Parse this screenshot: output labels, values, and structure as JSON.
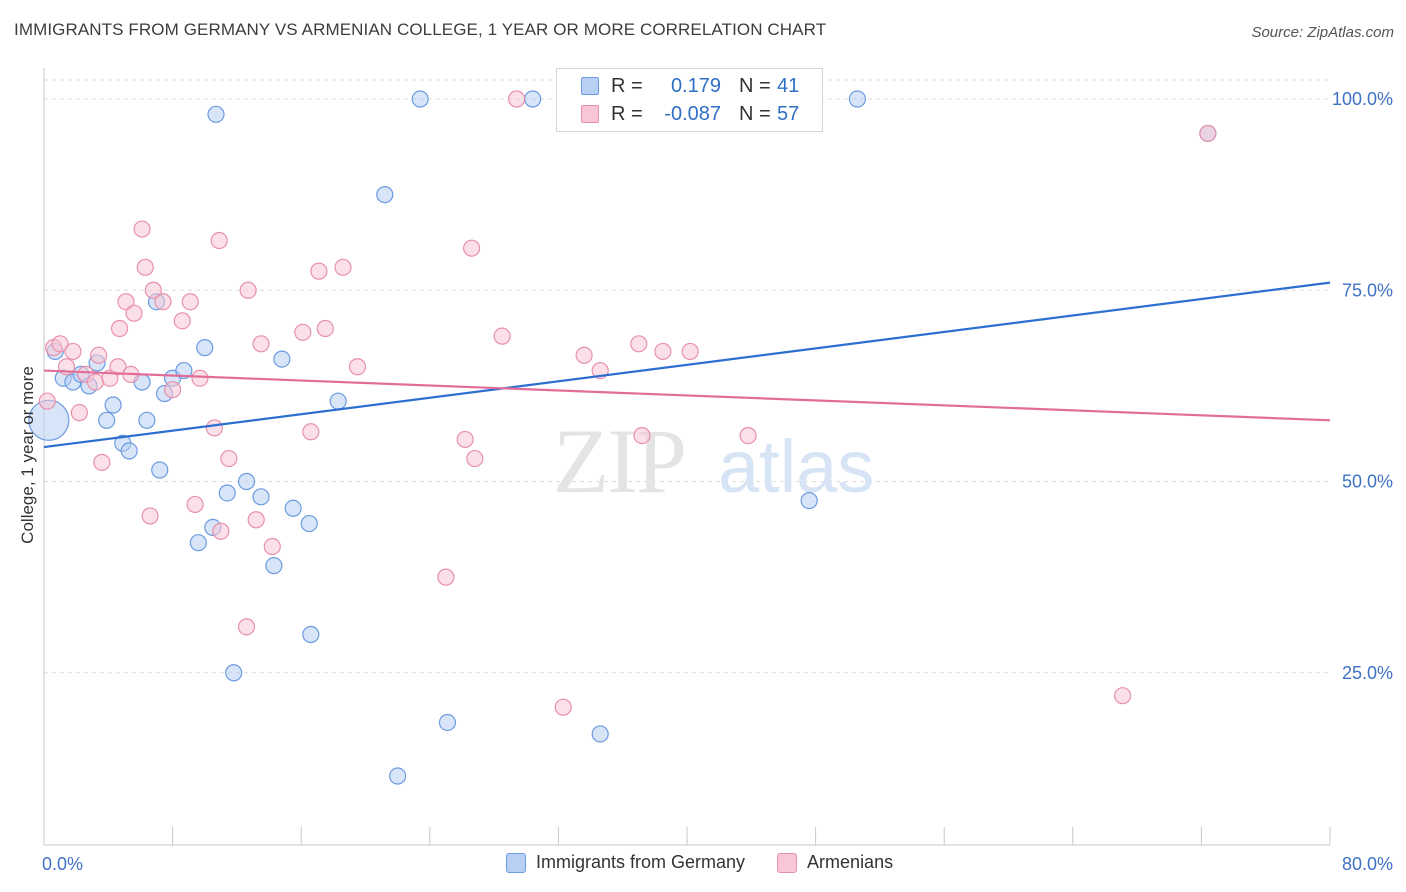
{
  "title": "IMMIGRANTS FROM GERMANY VS ARMENIAN COLLEGE, 1 YEAR OR MORE CORRELATION CHART",
  "source": "Source: ZipAtlas.com",
  "watermark": {
    "zip": "ZIP",
    "atlas": "atlas"
  },
  "legend": {
    "r_label": "R =",
    "n_label": "N =",
    "rows": [
      {
        "r": "0.179",
        "n": "41",
        "fill": "#b8d0f4",
        "stroke": "#6b9be0"
      },
      {
        "r": "-0.087",
        "n": "57",
        "fill": "#f8c7d6",
        "stroke": "#e890ac"
      }
    ]
  },
  "chart_data": {
    "type": "scatter",
    "title": "IMMIGRANTS FROM GERMANY VS ARMENIAN COLLEGE, 1 YEAR OR MORE CORRELATION CHART",
    "xlabel": "",
    "ylabel": "College, 1 year or more",
    "xlim": [
      0,
      80
    ],
    "ylim": [
      0,
      105
    ],
    "x_tick_labels": [
      "0.0%",
      "80.0%"
    ],
    "y_ticks": [
      25,
      50,
      75,
      100
    ],
    "y_tick_labels": [
      "25.0%",
      "50.0%",
      "75.0%",
      "100.0%"
    ],
    "grid": true,
    "legend_position": "top-center",
    "series": [
      {
        "name": "Immigrants from Germany",
        "color": "#6b9be0",
        "fill": "#b8d0f4",
        "trend": {
          "x": [
            0,
            80
          ],
          "y": [
            54.5,
            76
          ]
        },
        "trend_color": "#2d6fd0",
        "points": [
          [
            0.3,
            58
          ],
          [
            0.7,
            67
          ],
          [
            1.2,
            63.5
          ],
          [
            1.8,
            63
          ],
          [
            2.3,
            64
          ],
          [
            2.8,
            62.5
          ],
          [
            3.3,
            65.5
          ],
          [
            3.9,
            58
          ],
          [
            4.3,
            60
          ],
          [
            4.9,
            55
          ],
          [
            5.3,
            54
          ],
          [
            6.1,
            63
          ],
          [
            6.4,
            58
          ],
          [
            7.2,
            51.5
          ],
          [
            7.0,
            73.5
          ],
          [
            7.5,
            61.5
          ],
          [
            8.0,
            63.5
          ],
          [
            8.7,
            64.5
          ],
          [
            9.6,
            42
          ],
          [
            10.0,
            67.5
          ],
          [
            10.5,
            44
          ],
          [
            10.7,
            98
          ],
          [
            11.4,
            48.5
          ],
          [
            11.8,
            25
          ],
          [
            12.6,
            50
          ],
          [
            13.5,
            48
          ],
          [
            14.3,
            39
          ],
          [
            14.8,
            66
          ],
          [
            15.5,
            46.5
          ],
          [
            16.5,
            44.5
          ],
          [
            16.6,
            30
          ],
          [
            18.3,
            60.5
          ],
          [
            21.2,
            87.5
          ],
          [
            22.0,
            11.5
          ],
          [
            23.4,
            100
          ],
          [
            25.1,
            18.5
          ],
          [
            30.4,
            100
          ],
          [
            34.6,
            17
          ],
          [
            47.6,
            47.5
          ],
          [
            50.6,
            100
          ],
          [
            72.4,
            95.5
          ]
        ]
      },
      {
        "name": "Armenians",
        "color": "#e890ac",
        "fill": "#f8c7d6",
        "trend": {
          "x": [
            0,
            80
          ],
          "y": [
            64.5,
            58
          ]
        },
        "trend_color": "#e26d98",
        "points": [
          [
            0.2,
            60.5
          ],
          [
            0.6,
            67.5
          ],
          [
            1.0,
            68
          ],
          [
            1.4,
            65
          ],
          [
            1.8,
            67
          ],
          [
            2.2,
            59
          ],
          [
            2.6,
            64
          ],
          [
            3.2,
            63
          ],
          [
            3.4,
            66.5
          ],
          [
            3.6,
            52.5
          ],
          [
            4.1,
            63.5
          ],
          [
            4.6,
            65
          ],
          [
            4.7,
            70
          ],
          [
            5.1,
            73.5
          ],
          [
            5.4,
            64
          ],
          [
            5.6,
            72
          ],
          [
            6.1,
            83
          ],
          [
            6.3,
            78
          ],
          [
            6.6,
            45.5
          ],
          [
            6.8,
            75
          ],
          [
            7.4,
            73.5
          ],
          [
            8.0,
            62
          ],
          [
            8.6,
            71
          ],
          [
            9.1,
            73.5
          ],
          [
            9.4,
            47
          ],
          [
            9.7,
            63.5
          ],
          [
            10.6,
            57
          ],
          [
            10.9,
            81.5
          ],
          [
            11.0,
            43.5
          ],
          [
            11.5,
            53
          ],
          [
            12.6,
            31
          ],
          [
            12.7,
            75
          ],
          [
            13.2,
            45
          ],
          [
            13.5,
            68
          ],
          [
            14.2,
            41.5
          ],
          [
            16.1,
            69.5
          ],
          [
            16.6,
            56.5
          ],
          [
            17.1,
            77.5
          ],
          [
            17.5,
            70
          ],
          [
            18.6,
            78
          ],
          [
            19.5,
            65
          ],
          [
            25.0,
            37.5
          ],
          [
            26.2,
            55.5
          ],
          [
            26.6,
            80.5
          ],
          [
            26.8,
            53
          ],
          [
            28.5,
            69
          ],
          [
            29.4,
            100
          ],
          [
            32.3,
            20.5
          ],
          [
            33.6,
            66.5
          ],
          [
            34.6,
            64.5
          ],
          [
            37.0,
            68
          ],
          [
            37.2,
            56
          ],
          [
            38.5,
            67
          ],
          [
            40.2,
            67
          ],
          [
            43.8,
            56
          ],
          [
            67.1,
            22
          ],
          [
            72.4,
            95.5
          ]
        ]
      }
    ]
  },
  "bottom_legend": [
    {
      "label": "Immigrants from Germany",
      "fill": "#b8d0f4",
      "stroke": "#6b9be0"
    },
    {
      "label": "Armenians",
      "fill": "#f8c7d6",
      "stroke": "#e890ac"
    }
  ]
}
